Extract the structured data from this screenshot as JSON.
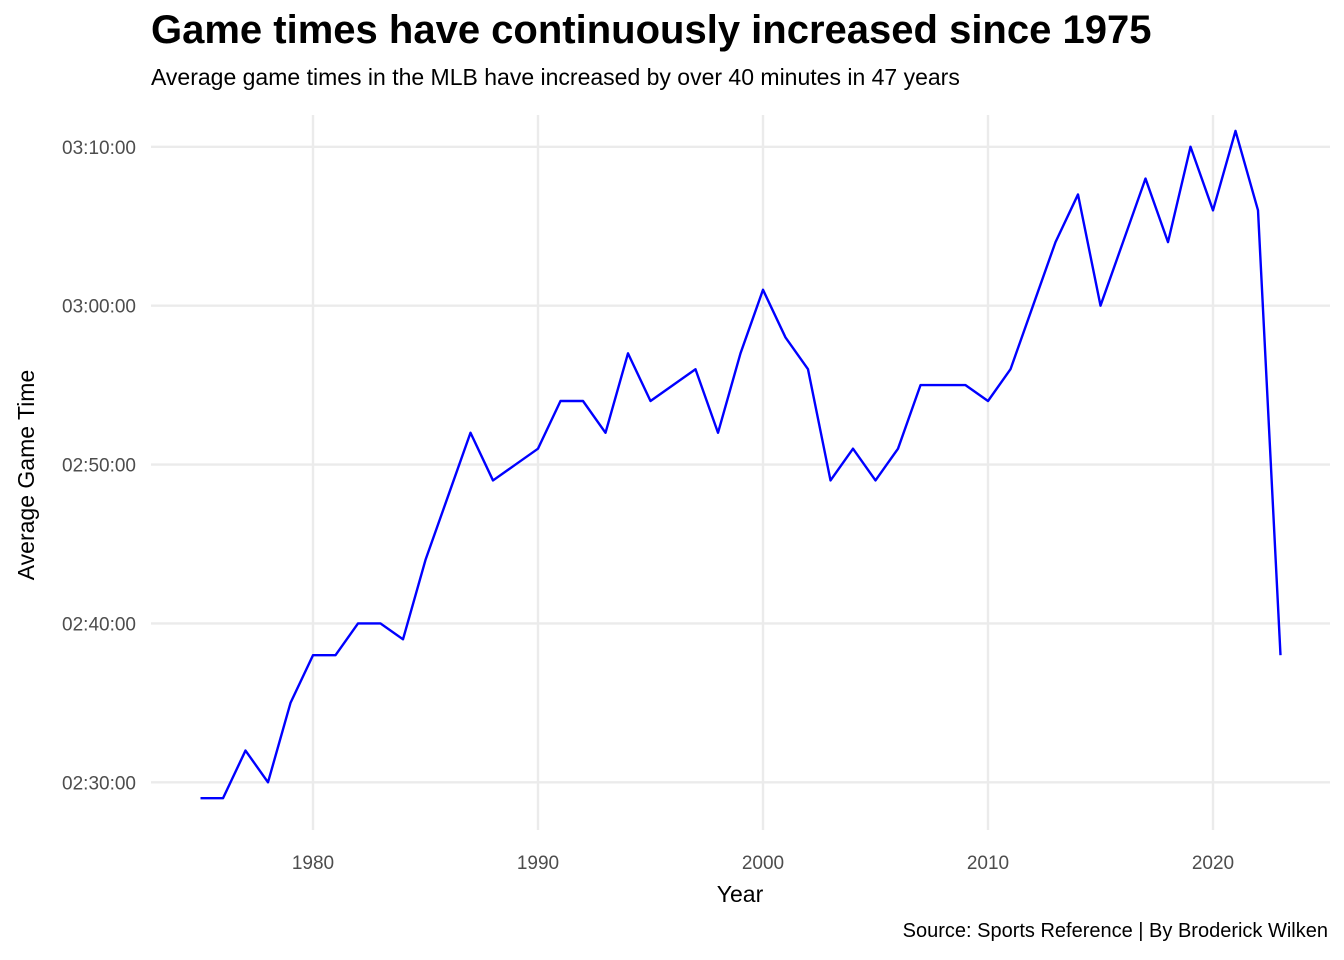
{
  "chart_data": {
    "type": "line",
    "title": "Game times have continuously increased since 1975",
    "subtitle": "Average game times in the MLB have increased by over 40 minutes in 47 years",
    "caption": "Source: Sports Reference | By Broderick Wilken",
    "xlabel": "Year",
    "ylabel": "Average Game Time",
    "xlim": [
      1972.8,
      2025.2
    ],
    "ylim": [
      "02:27:00",
      "03:12:00"
    ],
    "x_ticks": [
      1980,
      1990,
      2000,
      2010,
      2020
    ],
    "y_ticks": [
      "02:30:00",
      "02:40:00",
      "02:50:00",
      "03:00:00",
      "03:10:00"
    ],
    "grid": true,
    "line_color": "#0000ff",
    "series": [
      {
        "x": [
          1975,
          1976,
          1977,
          1978,
          1979,
          1980,
          1981,
          1982,
          1983,
          1984,
          1985,
          1986,
          1987,
          1988,
          1989,
          1990,
          1991,
          1992,
          1993,
          1994,
          1995,
          1996,
          1997,
          1998,
          1999,
          2000,
          2001,
          2002,
          2003,
          2004,
          2005,
          2006,
          2007,
          2008,
          2009,
          2010,
          2011,
          2012,
          2013,
          2014,
          2015,
          2016,
          2017,
          2018,
          2019,
          2020,
          2021,
          2022,
          2023
        ],
        "values": [
          "02:29:00",
          "02:29:00",
          "02:32:00",
          "02:30:00",
          "02:35:00",
          "02:38:00",
          "02:38:00",
          "02:40:00",
          "02:40:00",
          "02:39:00",
          "02:44:00",
          "02:48:00",
          "02:52:00",
          "02:49:00",
          "02:50:00",
          "02:51:00",
          "02:54:00",
          "02:54:00",
          "02:52:00",
          "02:57:00",
          "02:54:00",
          "02:55:00",
          "02:56:00",
          "02:52:00",
          "02:57:00",
          "03:01:00",
          "02:58:00",
          "02:56:00",
          "02:49:00",
          "02:51:00",
          "02:49:00",
          "02:51:00",
          "02:55:00",
          "02:55:00",
          "02:55:00",
          "02:54:00",
          "02:56:00",
          "03:00:00",
          "03:04:00",
          "03:07:00",
          "03:00:00",
          "03:04:00",
          "03:08:00",
          "03:04:00",
          "03:10:00",
          "03:06:00",
          "03:11:00",
          "03:06:00",
          "02:38:00"
        ]
      }
    ]
  }
}
